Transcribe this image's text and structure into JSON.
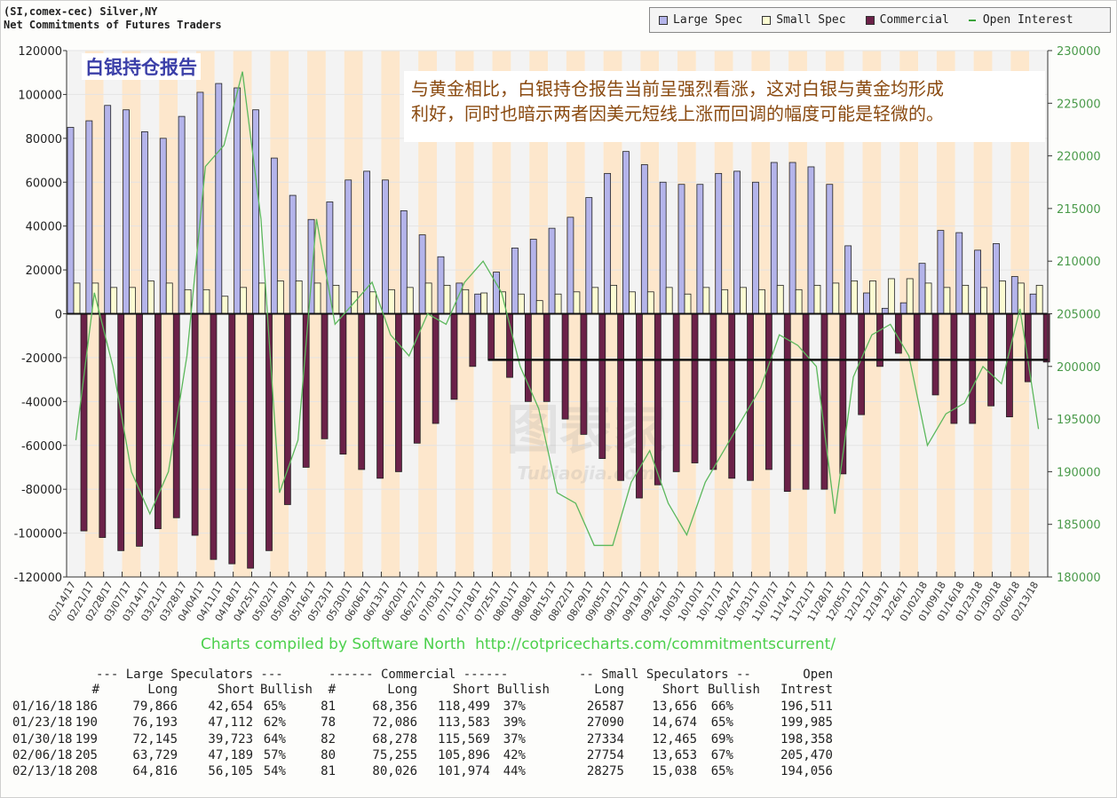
{
  "header": {
    "line1": "(SI,comex-cec) Silver,NY",
    "line2": "Net Commitments of Futures Traders"
  },
  "legend": [
    "Large Spec",
    "Small Spec",
    "Commercial",
    "Open Interest"
  ],
  "annotation_title": "白银持仓报告",
  "annotation_note": [
    "与黄金相比，白银持仓报告当前呈强烈看涨，这对白银与黄金均形成",
    "利好，同时也暗示两者因美元短线上涨而回调的幅度可能是轻微的。"
  ],
  "watermark": "图表家 Tubiaojia.com",
  "credit": "Charts compiled by Software North  http://cotpricecharts.com/commitmentscurrent/",
  "colors": {
    "large_spec": "#b4b4ea",
    "small_spec": "#fcfcd2",
    "commercial": "#6b2148",
    "open_interest": "#5cb85c",
    "band_a": "#fde7cc",
    "band_b": "#f3f3f3"
  },
  "chart_data": {
    "type": "bar",
    "title": "Net Commitments of Futures Traders",
    "categories": [
      "02/14/17",
      "02/21/17",
      "02/28/17",
      "03/07/17",
      "03/14/17",
      "03/21/17",
      "03/28/17",
      "04/04/17",
      "04/11/17",
      "04/18/17",
      "04/25/17",
      "05/02/17",
      "05/09/17",
      "05/16/17",
      "05/23/17",
      "05/30/17",
      "06/06/17",
      "06/13/17",
      "06/20/17",
      "06/27/17",
      "07/03/17",
      "07/11/17",
      "07/18/17",
      "07/25/17",
      "08/01/17",
      "08/08/17",
      "08/15/17",
      "08/22/17",
      "08/29/17",
      "09/05/17",
      "09/12/17",
      "09/19/17",
      "09/26/17",
      "10/03/17",
      "10/10/17",
      "10/17/17",
      "10/24/17",
      "10/31/17",
      "11/07/17",
      "11/14/17",
      "11/21/17",
      "11/28/17",
      "12/05/17",
      "12/12/17",
      "12/19/17",
      "12/26/17",
      "01/02/18",
      "01/09/18",
      "01/16/18",
      "01/23/18",
      "01/30/18",
      "02/06/18",
      "02/13/18"
    ],
    "series": [
      {
        "name": "Large Spec",
        "axis": "left",
        "values": [
          85000,
          88000,
          95000,
          93000,
          83000,
          80000,
          90000,
          101000,
          105000,
          103000,
          93000,
          71000,
          54000,
          43000,
          51000,
          61000,
          65000,
          61000,
          47000,
          36000,
          26000,
          14000,
          9000,
          19000,
          30000,
          34000,
          39000,
          44000,
          53000,
          64000,
          74000,
          68000,
          60000,
          59000,
          59000,
          64000,
          65000,
          60000,
          69000,
          69000,
          67000,
          59000,
          31000,
          9500,
          2500,
          5000,
          23000,
          38000,
          37000,
          29000,
          32000,
          17000,
          9000
        ]
      },
      {
        "name": "Small Spec",
        "axis": "left",
        "values": [
          14000,
          14000,
          12000,
          12000,
          15000,
          14000,
          11000,
          11000,
          8000,
          12000,
          14000,
          15000,
          15000,
          14000,
          13000,
          10000,
          10000,
          11000,
          12000,
          14000,
          13000,
          11000,
          9500,
          10000,
          9000,
          6000,
          9000,
          10000,
          12000,
          13000,
          10000,
          10000,
          12000,
          9000,
          12000,
          11000,
          12000,
          11000,
          13000,
          11000,
          13000,
          14000,
          15000,
          15000,
          16000,
          16000,
          14000,
          12000,
          13000,
          12000,
          15000,
          14000,
          13000
        ]
      },
      {
        "name": "Commercial",
        "axis": "left",
        "values": [
          -99000,
          -102000,
          -108000,
          -106000,
          -98000,
          -93000,
          -101000,
          -112000,
          -114000,
          -116000,
          -108000,
          -87000,
          -70000,
          -57000,
          -64000,
          -71000,
          -75000,
          -72000,
          -59000,
          -50000,
          -39000,
          -24000,
          -21000,
          -29000,
          -40000,
          -40000,
          -48000,
          -55000,
          -66000,
          -76000,
          -84000,
          -78000,
          -72000,
          -68000,
          -71000,
          -75000,
          -76000,
          -71000,
          -81000,
          -80000,
          -80000,
          -73000,
          -46000,
          -24000,
          -18000,
          -21000,
          -37000,
          -50000,
          -50000,
          -42000,
          -47000,
          -31000,
          -22000
        ]
      },
      {
        "name": "Open Interest",
        "axis": "right",
        "type": "line",
        "values": [
          193000,
          207000,
          200000,
          190000,
          186000,
          190000,
          201000,
          219000,
          221000,
          228000,
          214000,
          188000,
          193000,
          214000,
          204000,
          206000,
          208000,
          203000,
          201000,
          205000,
          204000,
          208000,
          210000,
          207000,
          200000,
          196000,
          188000,
          187000,
          183000,
          183000,
          189000,
          192000,
          187000,
          184000,
          189000,
          192000,
          195000,
          198000,
          203000,
          202000,
          200000,
          186000,
          199000,
          203000,
          204000,
          201000,
          192500,
          195500,
          196511,
          199985,
          198358,
          205470,
          194056
        ]
      }
    ],
    "reference_line": {
      "value": -21000,
      "from": "07/25/17",
      "to": "02/13/18"
    },
    "ylim": [
      -120000,
      120000
    ],
    "yticks": [
      "120000",
      "100000",
      "80000",
      "60000",
      "40000",
      "20000",
      "0",
      "-20000",
      "-40000",
      "-60000",
      "-80000",
      "-100000",
      "-120000"
    ],
    "y2lim": [
      180000,
      230000
    ],
    "y2ticks": [
      "230000",
      "225000",
      "220000",
      "215000",
      "210000",
      "205000",
      "200000",
      "195000",
      "190000",
      "185000",
      "180000"
    ],
    "legend_position": "top-right",
    "grid": true
  },
  "table": {
    "group_headers": [
      "--- Large Speculators ---",
      "------ Commercial ------",
      "-- Small Speculators --",
      "Open"
    ],
    "columns": [
      "#",
      "Long",
      "Short",
      "Bullish",
      "#",
      "Long",
      "Short",
      "Bullish",
      "Long",
      "Short",
      "Bullish",
      "Intrest"
    ],
    "rows": [
      [
        "01/16/18",
        "186",
        "79,866",
        "42,654",
        "65%",
        "81",
        "68,356",
        "118,499",
        "37%",
        "26587",
        "13,656",
        "66%",
        "196,511"
      ],
      [
        "01/23/18",
        "190",
        "76,193",
        "47,112",
        "62%",
        "78",
        "72,086",
        "113,583",
        "39%",
        "27090",
        "14,674",
        "65%",
        "199,985"
      ],
      [
        "01/30/18",
        "199",
        "72,145",
        "39,723",
        "64%",
        "82",
        "68,278",
        "115,569",
        "37%",
        "27334",
        "12,465",
        "69%",
        "198,358"
      ],
      [
        "02/06/18",
        "205",
        "63,729",
        "47,189",
        "57%",
        "80",
        "75,255",
        "105,896",
        "42%",
        "27754",
        "13,653",
        "67%",
        "205,470"
      ],
      [
        "02/13/18",
        "208",
        "64,816",
        "56,105",
        "54%",
        "81",
        "80,026",
        "101,974",
        "44%",
        "28275",
        "15,038",
        "65%",
        "194,056"
      ]
    ]
  }
}
